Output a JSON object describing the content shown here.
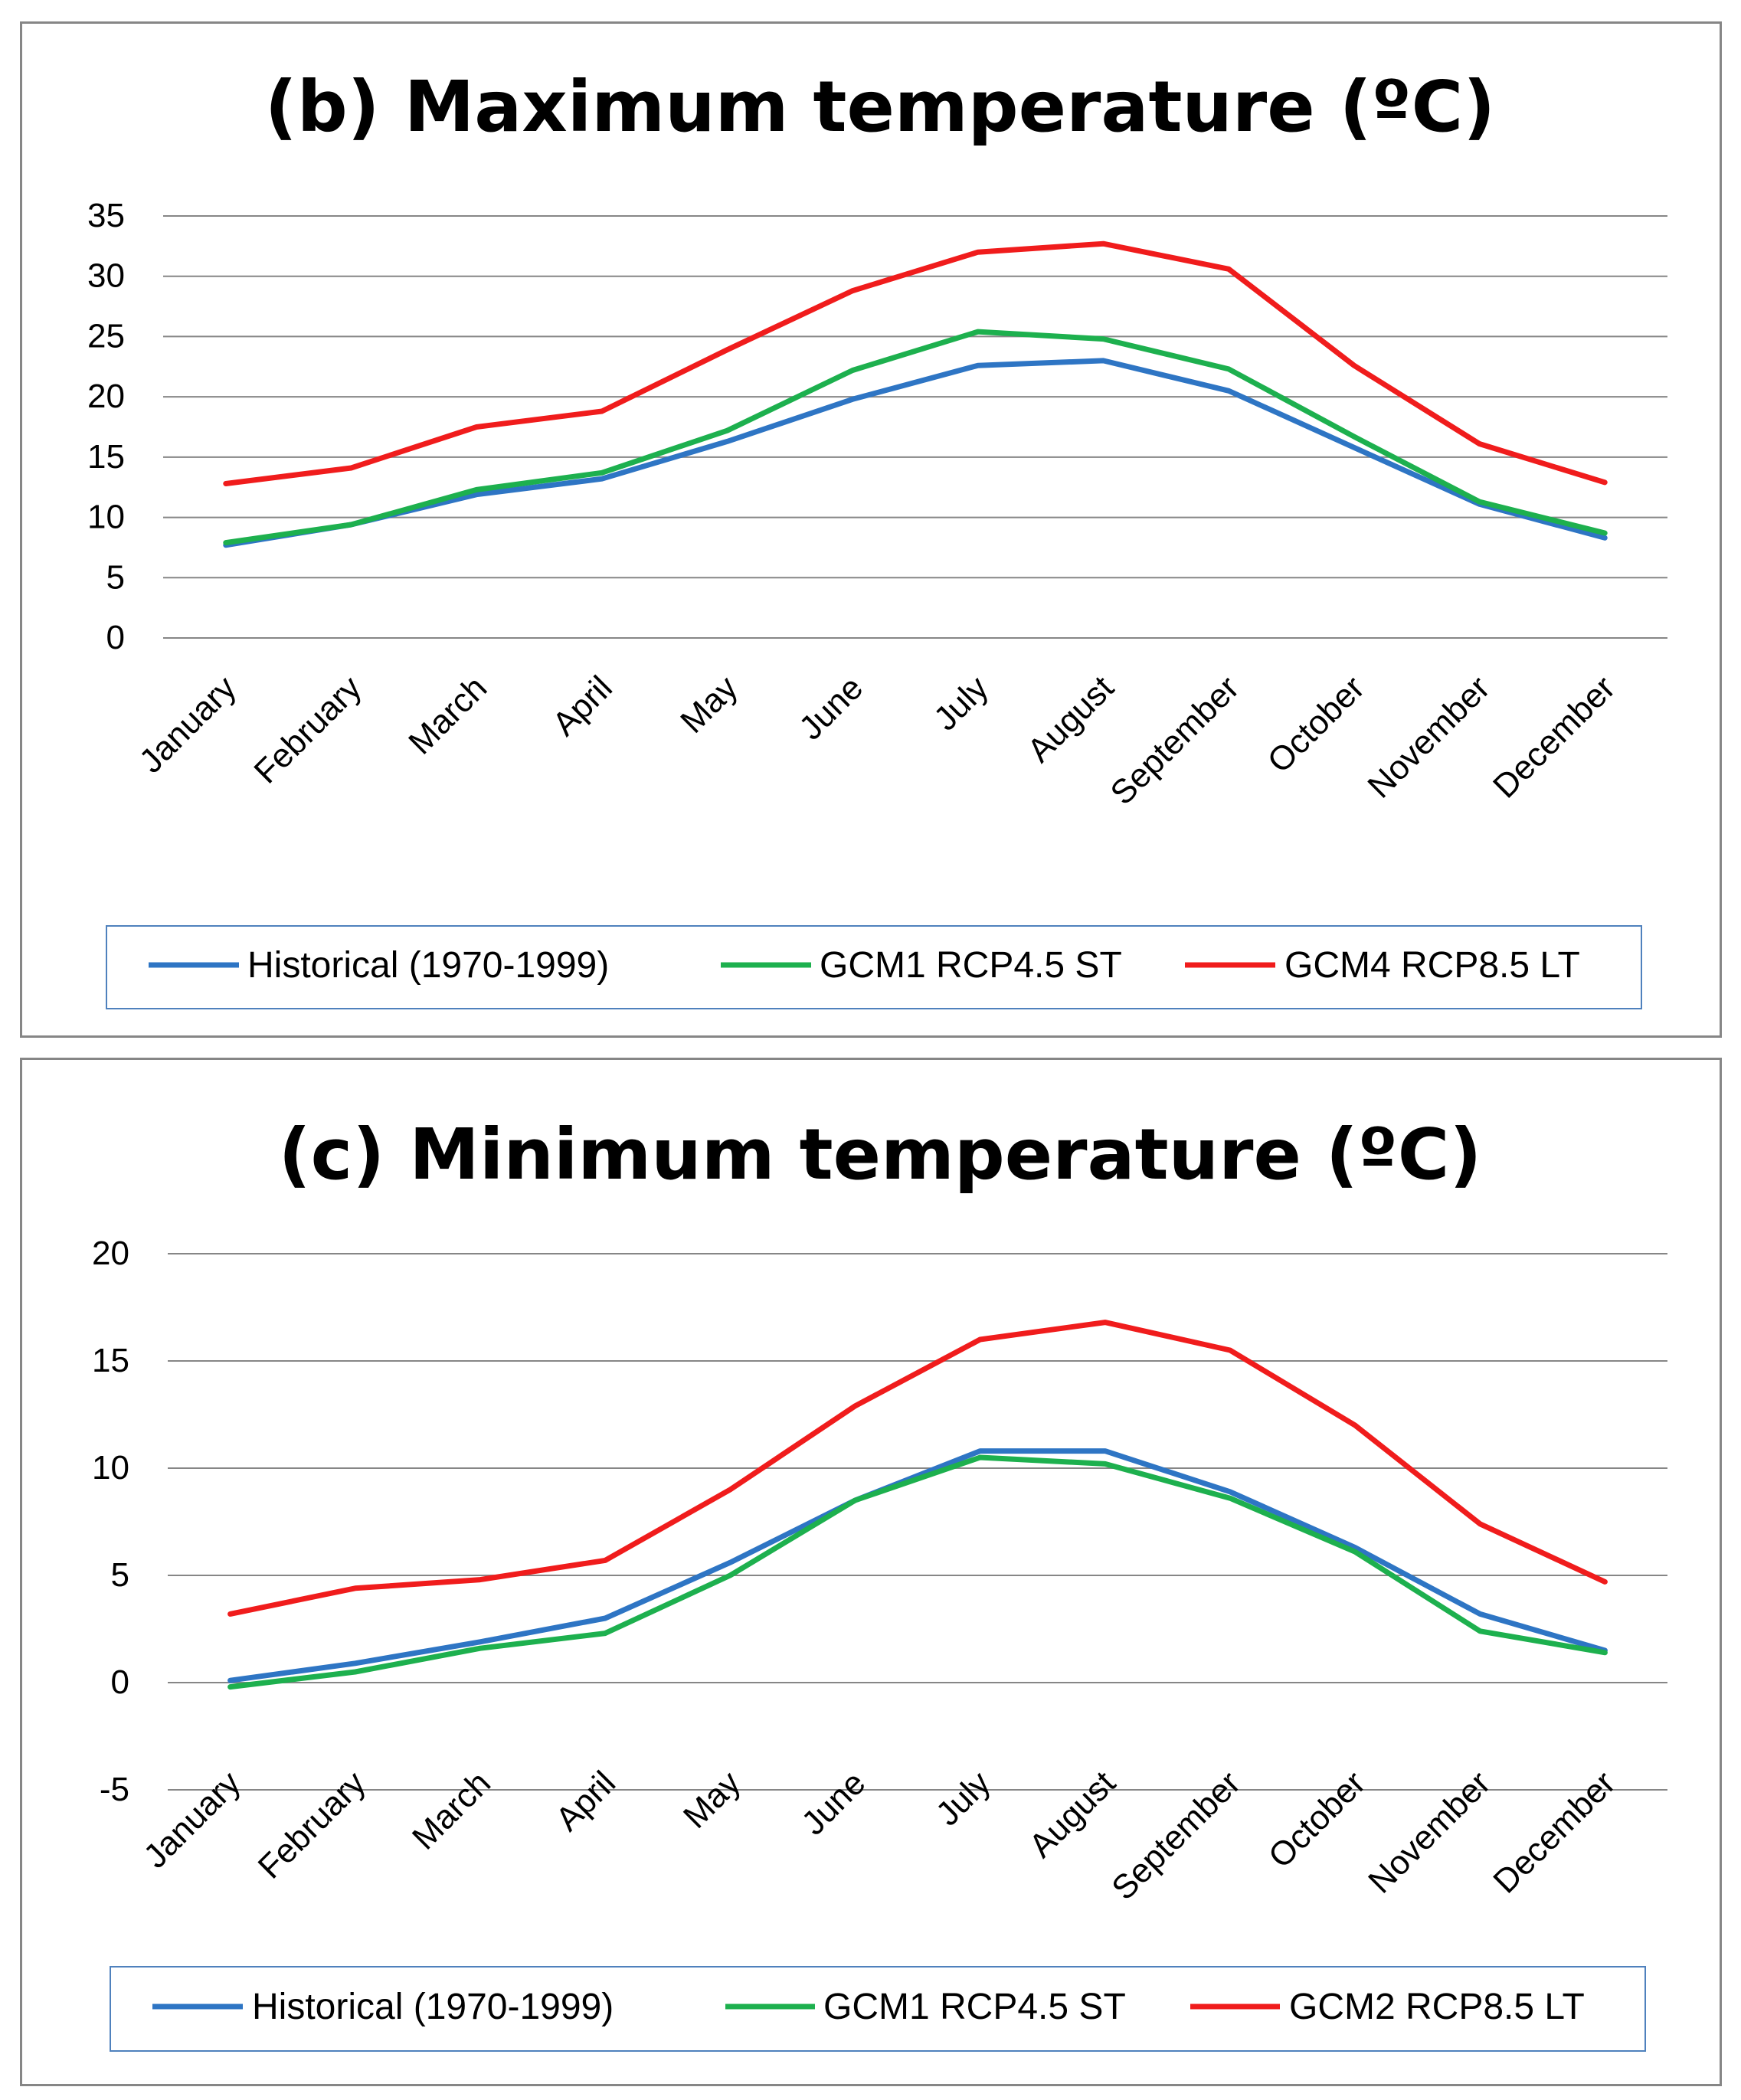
{
  "chart_data": [
    {
      "type": "line",
      "title": "(b)    Maximum temperature (ºC)",
      "xlabel": "",
      "ylabel": "",
      "ylim": [
        0,
        35
      ],
      "yticks": [
        0,
        5,
        10,
        15,
        20,
        25,
        30,
        35
      ],
      "ytick_labels": [
        "0",
        "5",
        "10",
        "15",
        "20",
        "25",
        "30",
        "35"
      ],
      "grid": true,
      "legend_position": "bottom",
      "categories": [
        "January",
        "February",
        "March",
        "April",
        "May",
        "June",
        "July",
        "August",
        "September",
        "October",
        "November",
        "December"
      ],
      "series": [
        {
          "name": "Historical (1970-1999)",
          "color": "#2E75C4",
          "values": [
            7.7,
            9.4,
            11.9,
            13.2,
            16.3,
            19.8,
            22.6,
            23.0,
            20.5,
            15.8,
            11.1,
            8.3
          ]
        },
        {
          "name": "GCM1 RCP4.5 ST",
          "color": "#1DB04E",
          "values": [
            7.9,
            9.4,
            12.3,
            13.7,
            17.2,
            22.2,
            25.4,
            24.8,
            22.3,
            16.7,
            11.3,
            8.7
          ]
        },
        {
          "name": "GCM4 RCP8.5 LT",
          "color": "#F01C1C",
          "values": [
            12.8,
            14.1,
            17.5,
            18.8,
            23.9,
            28.8,
            32.0,
            32.7,
            30.6,
            22.6,
            16.1,
            12.9
          ]
        }
      ]
    },
    {
      "type": "line",
      "title": "(c)    Minimum temperature (ºC)",
      "xlabel": "",
      "ylabel": "",
      "ylim": [
        -5,
        20
      ],
      "yticks": [
        -5,
        0,
        5,
        10,
        15,
        20
      ],
      "ytick_labels": [
        "-5",
        "0",
        "5",
        "10",
        "15",
        "20"
      ],
      "grid": true,
      "legend_position": "bottom",
      "categories": [
        "January",
        "February",
        "March",
        "April",
        "May",
        "June",
        "July",
        "August",
        "September",
        "October",
        "November",
        "December"
      ],
      "series": [
        {
          "name": "Historical (1970-1999)",
          "color": "#2E75C4",
          "values": [
            0.1,
            0.9,
            1.9,
            3.0,
            5.6,
            8.5,
            10.8,
            10.8,
            8.9,
            6.3,
            3.2,
            1.5
          ]
        },
        {
          "name": "GCM1 RCP4.5 ST",
          "color": "#1DB04E",
          "values": [
            -0.2,
            0.5,
            1.6,
            2.3,
            5.0,
            8.5,
            10.5,
            10.2,
            8.6,
            6.1,
            2.4,
            1.4
          ]
        },
        {
          "name": "GCM2 RCP8.5 LT",
          "color": "#F01C1C",
          "values": [
            3.2,
            4.4,
            4.8,
            5.7,
            9.0,
            12.9,
            16.0,
            16.8,
            15.5,
            12.0,
            7.4,
            4.7
          ]
        }
      ]
    }
  ]
}
